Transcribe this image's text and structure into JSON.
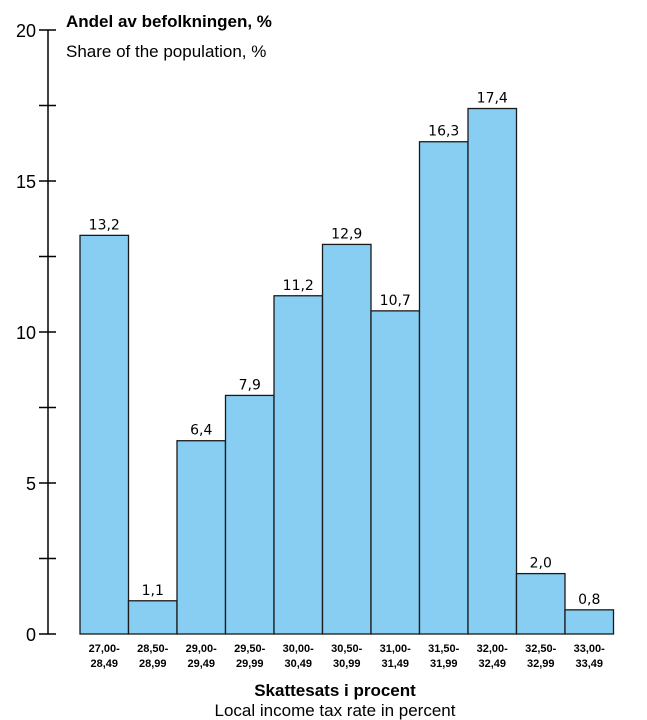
{
  "chart_data": {
    "type": "bar",
    "ylabel": "Andel av befolkningen, %",
    "ylabel_sub": "Share of the population, %",
    "xlabel": "Skattesats i procent",
    "xlabel_sub": "Local income tax rate in percent",
    "ylim": [
      0,
      20
    ],
    "yticks": [
      0,
      5,
      10,
      15,
      20
    ],
    "categories": [
      [
        "27,00-",
        "28,49"
      ],
      [
        "28,50-",
        "28,99"
      ],
      [
        "29,00-",
        "29,49"
      ],
      [
        "29,50-",
        "29,99"
      ],
      [
        "30,00-",
        "30,49"
      ],
      [
        "30,50-",
        "30,99"
      ],
      [
        "31,00-",
        "31,49"
      ],
      [
        "31,50-",
        "31,99"
      ],
      [
        "32,00-",
        "32,49"
      ],
      [
        "32,50-",
        "32,99"
      ],
      [
        "33,00-",
        "33,49"
      ]
    ],
    "values": [
      13.2,
      1.1,
      6.4,
      7.9,
      11.2,
      12.9,
      10.7,
      16.3,
      17.4,
      2.0,
      0.8
    ],
    "value_labels": [
      "13,2",
      "1,1",
      "6,4",
      "7,9",
      "11,2",
      "12,9",
      "10,7",
      "16,3",
      "17,4",
      "2,0",
      "0,8"
    ],
    "colors": {
      "bar_fill": "#87CEF2",
      "bar_stroke": "#1a1a1a",
      "axis": "#000000"
    }
  }
}
